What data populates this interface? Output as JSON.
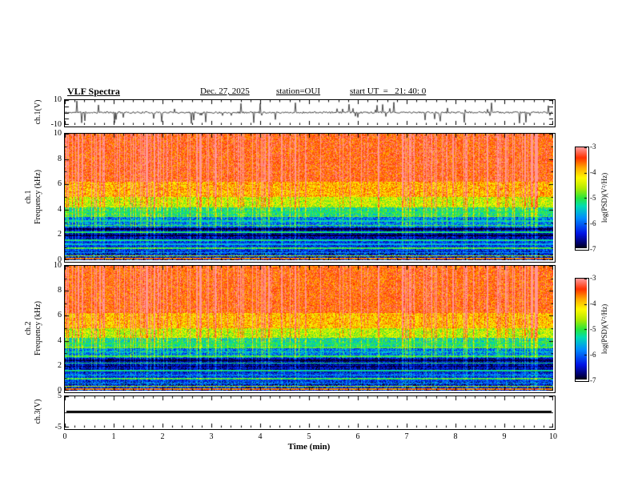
{
  "header": {
    "title": "VLF Spectra",
    "date": "Dec. 27, 2025",
    "station": "station=OUI",
    "start_ut": "start UT  =   21: 40: 0"
  },
  "xaxis": {
    "label": "Time (min)",
    "range": [
      0,
      10
    ],
    "ticks": [
      0,
      1,
      2,
      3,
      4,
      5,
      6,
      7,
      8,
      9,
      10
    ]
  },
  "colormap": {
    "value_range_log_psd": [
      -7,
      -3
    ],
    "stops": [
      [
        0,
        0,
        0,
        10
      ],
      [
        0.05,
        0,
        0,
        100
      ],
      [
        0.15,
        0,
        20,
        230
      ],
      [
        0.3,
        0,
        140,
        255
      ],
      [
        0.42,
        0,
        220,
        180
      ],
      [
        0.5,
        40,
        230,
        60
      ],
      [
        0.6,
        180,
        235,
        0
      ],
      [
        0.7,
        255,
        250,
        0
      ],
      [
        0.8,
        255,
        170,
        0
      ],
      [
        0.9,
        255,
        50,
        0
      ],
      [
        1,
        255,
        150,
        150
      ]
    ]
  },
  "chart_data": [
    {
      "id": "ch1_waveform",
      "type": "line",
      "ylabel": "ch.1(V)",
      "ylim": [
        -10,
        10
      ],
      "ytick_labels": [
        "10",
        "-10"
      ],
      "description": "Channel 1 time series: noise floor near 0 V with frequent impulsive sferic spikes reaching toward +/-10 V across 0-10 min",
      "signal": {
        "noise_v": 0.7,
        "spike_rate": 0.08,
        "spike_v_max": 9.5
      }
    },
    {
      "id": "ch1_spectrogram",
      "type": "heatmap",
      "ylabel_lines": [
        "ch.1",
        "Frequency (kHz)"
      ],
      "ylim_khz": [
        0,
        10
      ],
      "ytick_labels": [
        "10",
        "8",
        "6",
        "4",
        "2",
        "0"
      ],
      "colorbar": {
        "label": "log(PSD)(V²/Hz)",
        "ticks": [
          "-3",
          "-4",
          "-5",
          "-6",
          "-7"
        ],
        "range": [
          -7,
          -3
        ]
      },
      "bands": [
        {
          "f": [
            6.2,
            10.01
          ],
          "v": -3.45,
          "noise": 0.45
        },
        {
          "f": [
            5.0,
            6.2
          ],
          "v": -3.9,
          "noise": 0.5
        },
        {
          "f": [
            4.2,
            5.0
          ],
          "v": -4.5,
          "noise": 0.5
        },
        {
          "f": [
            3.4,
            4.2
          ],
          "v": -5.2,
          "noise": 0.55
        },
        {
          "f": [
            2.6,
            3.4
          ],
          "v": -5.9,
          "noise": 0.6
        },
        {
          "f": [
            1.5,
            2.6
          ],
          "v": -6.6,
          "noise": 0.4
        },
        {
          "f": [
            0.7,
            1.5
          ],
          "v": -6.25,
          "noise": 0.5
        },
        {
          "f": [
            0.0,
            0.7
          ],
          "v": -6.4,
          "noise": 0.7
        }
      ],
      "tone_lines": [
        {
          "f": 0.12,
          "v": -3.7
        },
        {
          "f": 0.35,
          "v": -4.6
        },
        {
          "f": 0.6,
          "v": -5.8
        },
        {
          "f": 0.95,
          "v": -5.0
        },
        {
          "f": 1.25,
          "v": -5.6
        },
        {
          "f": 1.6,
          "v": -5.3
        },
        {
          "f": 1.95,
          "v": -6.95
        },
        {
          "f": 2.2,
          "v": -5.2
        },
        {
          "f": 2.45,
          "v": -6.95
        },
        {
          "f": 2.75,
          "v": -5.0
        },
        {
          "f": 3.1,
          "v": -5.3
        },
        {
          "f": 3.45,
          "v": -4.9
        },
        {
          "f": 3.8,
          "v": -5.1
        }
      ],
      "streaks": {
        "rate": 0.3,
        "boost_max": 1.3
      },
      "description": "VLF spectrogram ch.1: intense red band above ~6 kHz, yellow-green 4-6 kHz, speckled blue 2.5-4 kHz, dark absorption band 1.5-2.6 kHz, narrowband horizontal tones, dense vertical sferic streaks"
    },
    {
      "id": "ch2_spectrogram",
      "type": "heatmap",
      "ylabel_lines": [
        "ch.2",
        "Frequency (kHz)"
      ],
      "ylim_khz": [
        0,
        10
      ],
      "ytick_labels": [
        "10",
        "8",
        "6",
        "4",
        "2",
        "0"
      ],
      "colorbar": {
        "label": "log(PSD)(V²/Hz)",
        "ticks": [
          "-3",
          "-4",
          "-5",
          "-6",
          "-7"
        ],
        "range": [
          -7,
          -3
        ]
      },
      "bands": [
        {
          "f": [
            6.2,
            10.01
          ],
          "v": -3.5,
          "noise": 0.45
        },
        {
          "f": [
            5.0,
            6.2
          ],
          "v": -3.95,
          "noise": 0.5
        },
        {
          "f": [
            4.2,
            5.0
          ],
          "v": -4.55,
          "noise": 0.5
        },
        {
          "f": [
            3.4,
            4.2
          ],
          "v": -5.25,
          "noise": 0.55
        },
        {
          "f": [
            2.6,
            3.4
          ],
          "v": -5.9,
          "noise": 0.6
        },
        {
          "f": [
            1.5,
            2.6
          ],
          "v": -6.6,
          "noise": 0.4
        },
        {
          "f": [
            0.7,
            1.5
          ],
          "v": -6.25,
          "noise": 0.5
        },
        {
          "f": [
            0.0,
            0.7
          ],
          "v": -6.4,
          "noise": 0.7
        }
      ],
      "tone_lines": [
        {
          "f": 0.12,
          "v": -3.7
        },
        {
          "f": 0.35,
          "v": -4.6
        },
        {
          "f": 0.6,
          "v": -5.8
        },
        {
          "f": 0.95,
          "v": -5.0
        },
        {
          "f": 1.25,
          "v": -5.6
        },
        {
          "f": 1.6,
          "v": -5.3
        },
        {
          "f": 1.95,
          "v": -6.95
        },
        {
          "f": 2.2,
          "v": -5.2
        },
        {
          "f": 2.45,
          "v": -6.95
        },
        {
          "f": 2.75,
          "v": -5.0
        },
        {
          "f": 3.1,
          "v": -5.3
        },
        {
          "f": 3.45,
          "v": -4.9
        },
        {
          "f": 3.8,
          "v": -5.1
        }
      ],
      "streaks": {
        "rate": 0.3,
        "boost_max": 1.3
      },
      "description": "VLF spectrogram ch.2: same banded structure as ch.1 with red sferic band above ~6 kHz and dark band 1.5-2.6 kHz"
    },
    {
      "id": "ch3_waveform",
      "type": "line",
      "ylabel": "ch.3(V)",
      "ylim": [
        -5,
        5
      ],
      "ytick_labels": [
        "5",
        "-5"
      ],
      "description": "Channel 3 flat line at 0 V for entire 10 min (no signal)",
      "signal": {
        "flat_v": 0
      }
    }
  ]
}
